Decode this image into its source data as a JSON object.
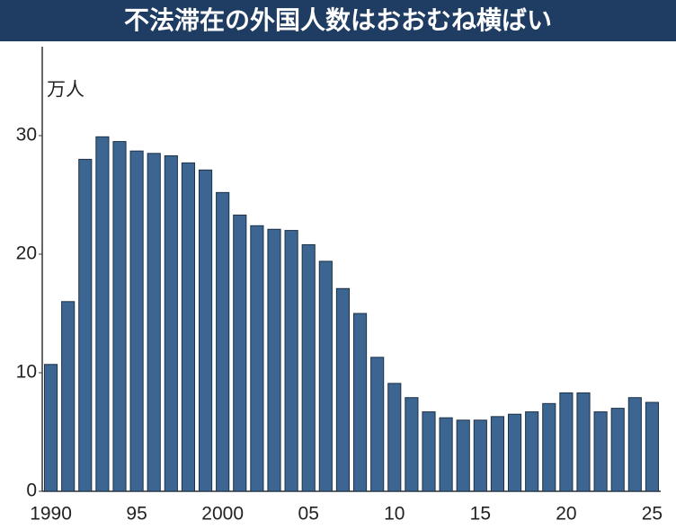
{
  "chart_data": {
    "type": "bar",
    "title": "不法滞在の外国人数はおおむね横ばい",
    "y_label": "万人",
    "categories": [
      "1990",
      null,
      null,
      null,
      null,
      "95",
      null,
      null,
      null,
      null,
      "2000",
      null,
      null,
      null,
      null,
      "05",
      null,
      null,
      null,
      null,
      "10",
      null,
      null,
      null,
      null,
      "15",
      null,
      null,
      null,
      null,
      "20",
      null,
      null,
      null,
      null,
      "25"
    ],
    "values": [
      10.7,
      16.0,
      28.0,
      29.9,
      29.5,
      28.7,
      28.5,
      28.3,
      27.7,
      27.1,
      25.2,
      23.3,
      22.4,
      22.1,
      22.0,
      20.8,
      19.4,
      17.1,
      15.0,
      11.3,
      9.1,
      7.9,
      6.7,
      6.2,
      6.0,
      6.0,
      6.3,
      6.5,
      6.7,
      7.4,
      8.3,
      8.3,
      6.7,
      7.0,
      7.9,
      7.5
    ],
    "color": "#3d6591",
    "ylim": [
      0,
      37.5
    ],
    "yticks": [
      0,
      10,
      20,
      30
    ],
    "grid": false
  }
}
